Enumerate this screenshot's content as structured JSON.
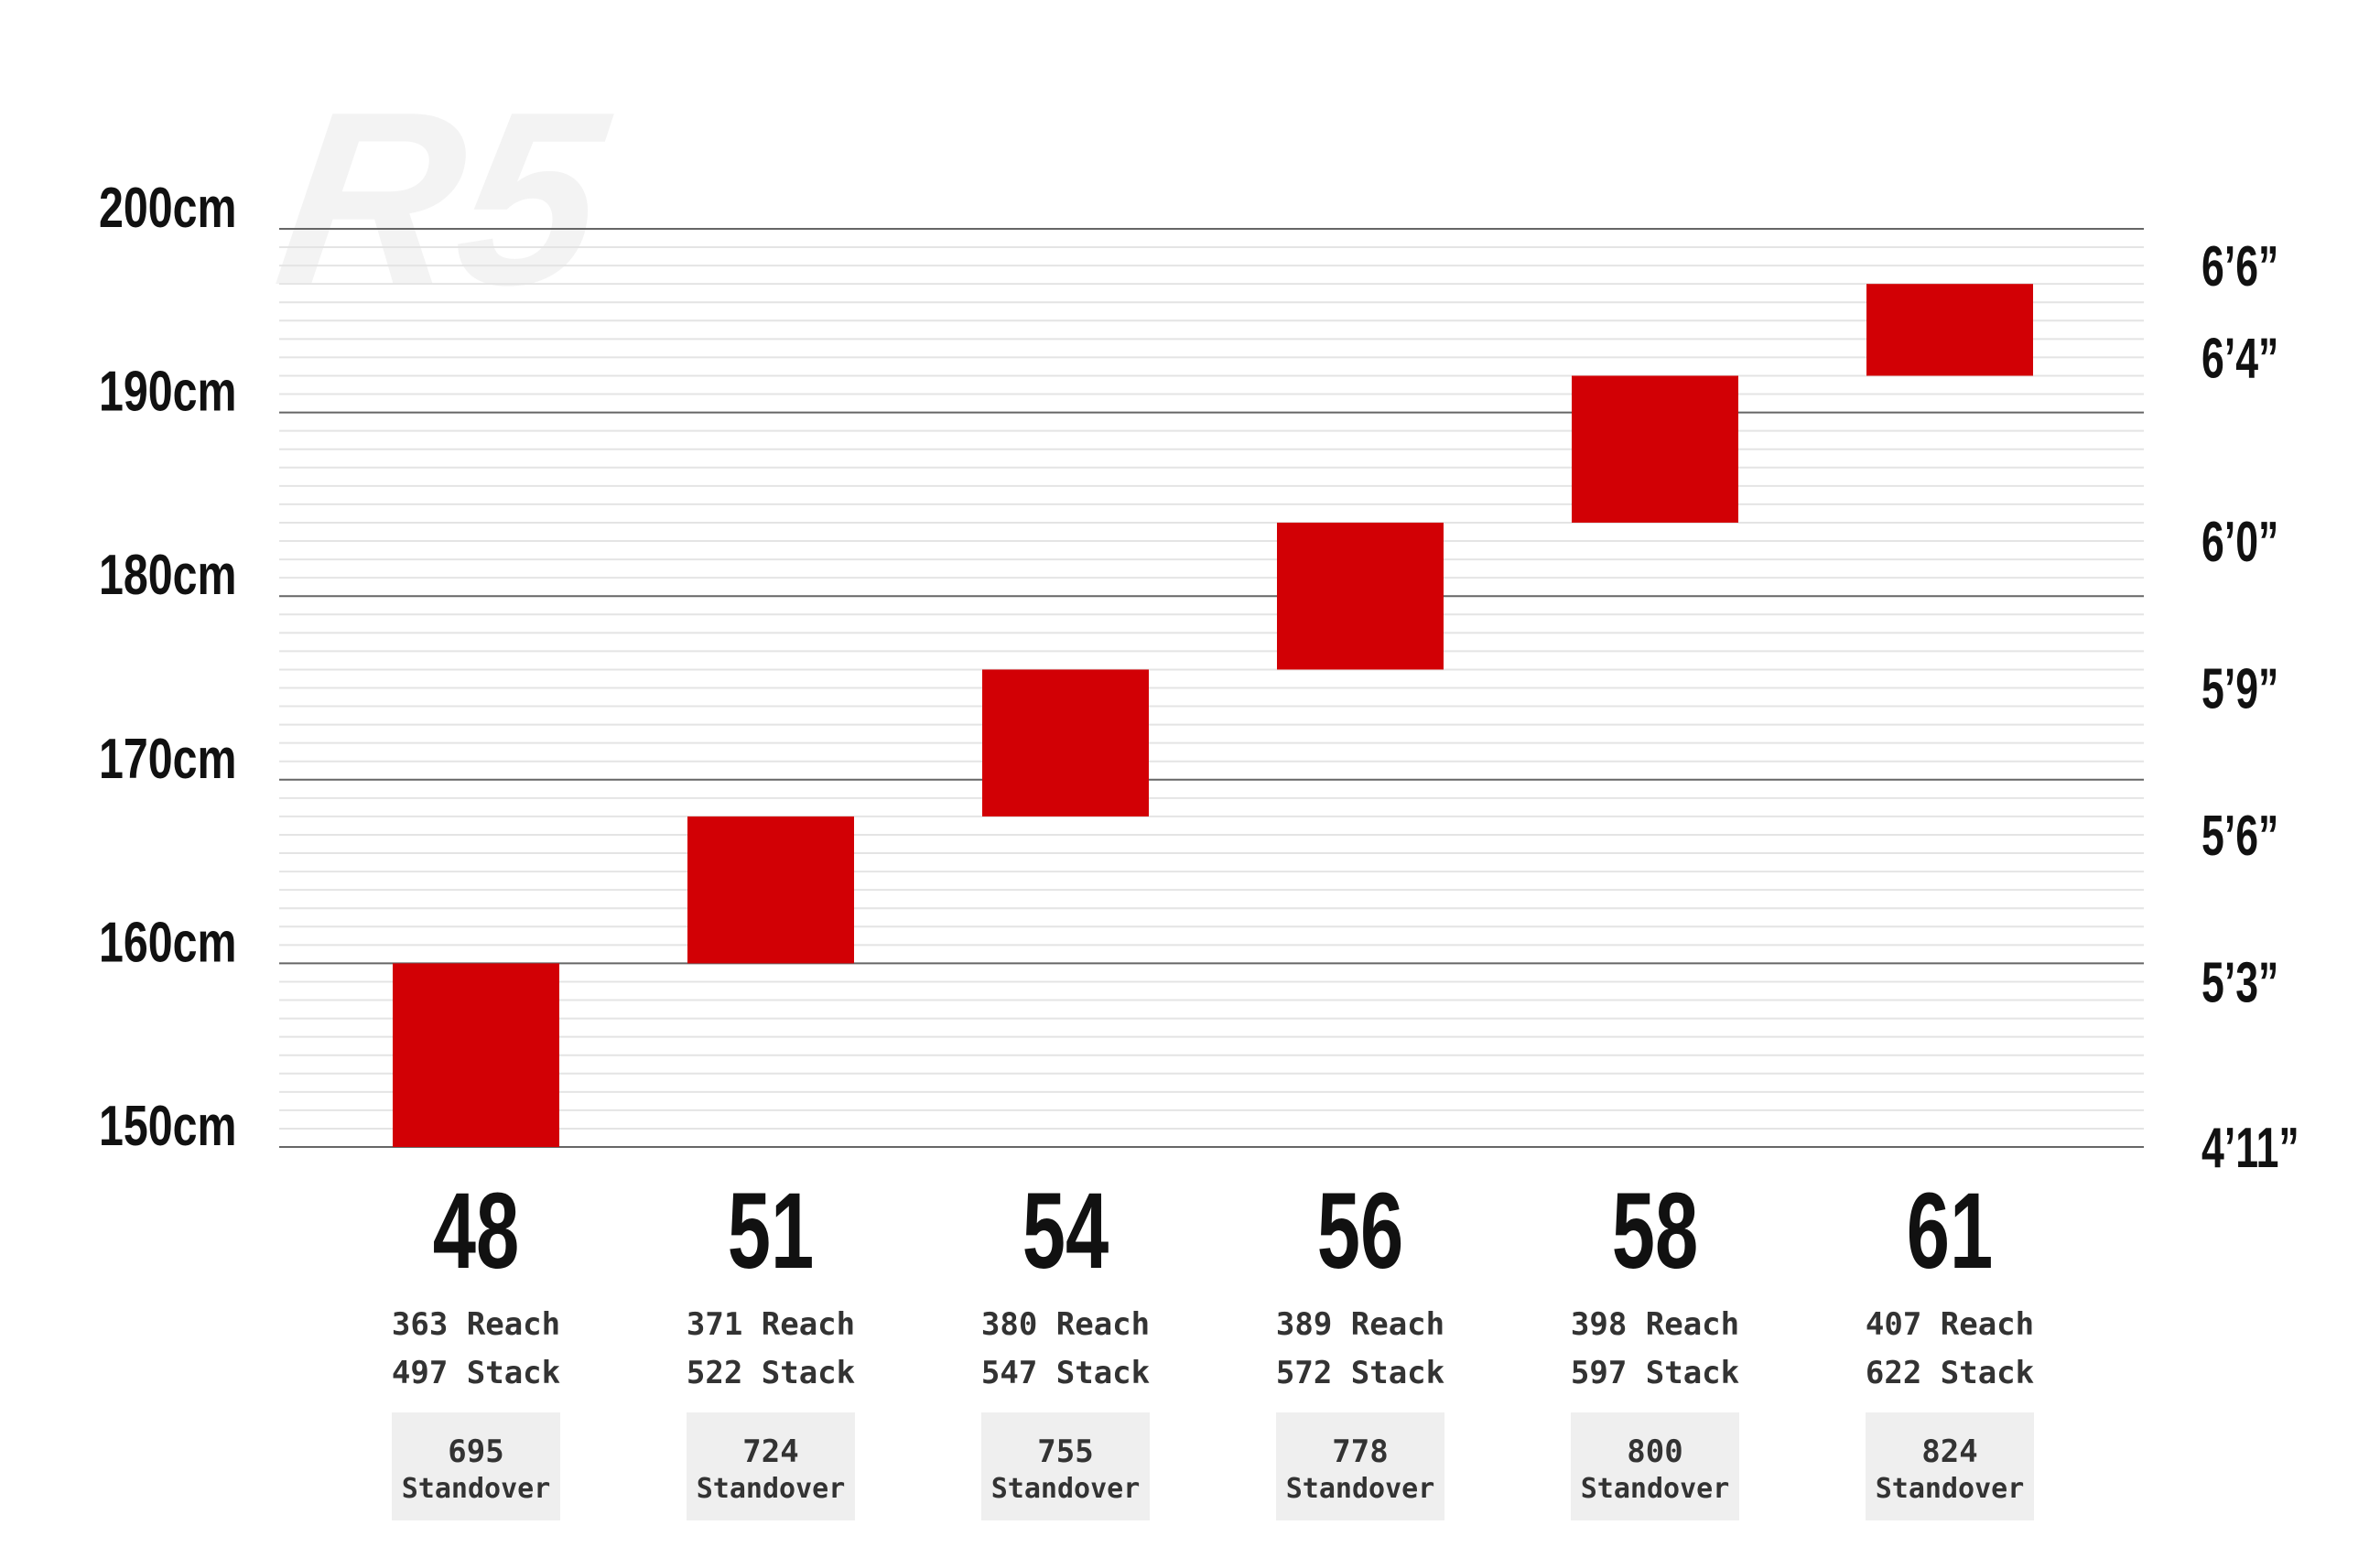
{
  "watermark": "R5",
  "colors": {
    "bar": "#d20005",
    "major_grid": "#666666",
    "minor_grid": "#e4e4e4",
    "standover_box": "#efefef",
    "text": "#111111"
  },
  "chart_data": {
    "type": "bar",
    "orientation": "floating-range",
    "ylim": [
      150,
      200
    ],
    "yunit": "cm",
    "grid": true,
    "left_axis_ticks": [
      {
        "value": 200,
        "label": "200cm"
      },
      {
        "value": 190,
        "label": "190cm"
      },
      {
        "value": 180,
        "label": "180cm"
      },
      {
        "value": 170,
        "label": "170cm"
      },
      {
        "value": 160,
        "label": "160cm"
      },
      {
        "value": 150,
        "label": "150cm"
      }
    ],
    "right_axis_ticks": [
      {
        "value": 198,
        "label": "6’6”"
      },
      {
        "value": 193,
        "label": "6’4”"
      },
      {
        "value": 183,
        "label": "6’0”"
      },
      {
        "value": 175,
        "label": "5’9”"
      },
      {
        "value": 167,
        "label": "5’6”"
      },
      {
        "value": 159,
        "label": "5’3”"
      },
      {
        "value": 150,
        "label": "4’11”"
      }
    ],
    "categories": [
      "48",
      "51",
      "54",
      "56",
      "58",
      "61"
    ],
    "ranges": [
      {
        "low": 150,
        "high": 160
      },
      {
        "low": 160,
        "high": 168
      },
      {
        "low": 168,
        "high": 176
      },
      {
        "low": 176,
        "high": 184
      },
      {
        "low": 184,
        "high": 192
      },
      {
        "low": 192,
        "high": 197
      }
    ],
    "details": [
      {
        "reach": "363 Reach",
        "stack": "497 Stack",
        "standover_value": "695",
        "standover_label": "Standover"
      },
      {
        "reach": "371 Reach",
        "stack": "522 Stack",
        "standover_value": "724",
        "standover_label": "Standover"
      },
      {
        "reach": "380 Reach",
        "stack": "547 Stack",
        "standover_value": "755",
        "standover_label": "Standover"
      },
      {
        "reach": "389 Reach",
        "stack": "572 Stack",
        "standover_value": "778",
        "standover_label": "Standover"
      },
      {
        "reach": "398 Reach",
        "stack": "597 Stack",
        "standover_value": "800",
        "standover_label": "Standover"
      },
      {
        "reach": "407 Reach",
        "stack": "622 Stack",
        "standover_value": "824",
        "standover_label": "Standover"
      }
    ]
  }
}
